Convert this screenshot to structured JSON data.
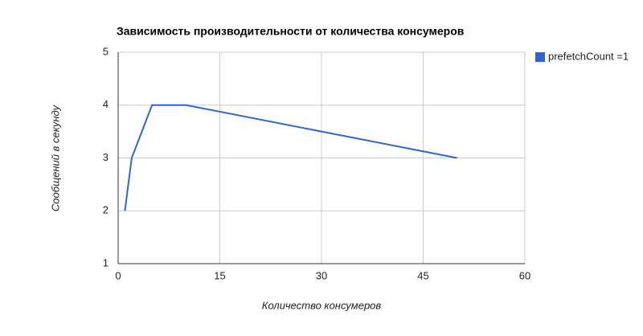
{
  "chart_data": {
    "type": "line",
    "title": "Зависимость производительности от количества консумеров",
    "x_label": "Количество консумеров",
    "y_label": "Сообщений в секунду",
    "x": [
      1,
      2,
      5,
      10,
      50
    ],
    "series": [
      {
        "name": "prefetchCount =1",
        "color": "#3366cc",
        "values": [
          2,
          3,
          4,
          4,
          3
        ]
      }
    ],
    "xlim": [
      0,
      60
    ],
    "xticks": [
      0,
      15,
      30,
      45,
      60
    ],
    "ylim": [
      1,
      5
    ],
    "yticks": [
      1,
      2,
      3,
      4,
      5
    ],
    "grid": true,
    "legend": "right"
  }
}
